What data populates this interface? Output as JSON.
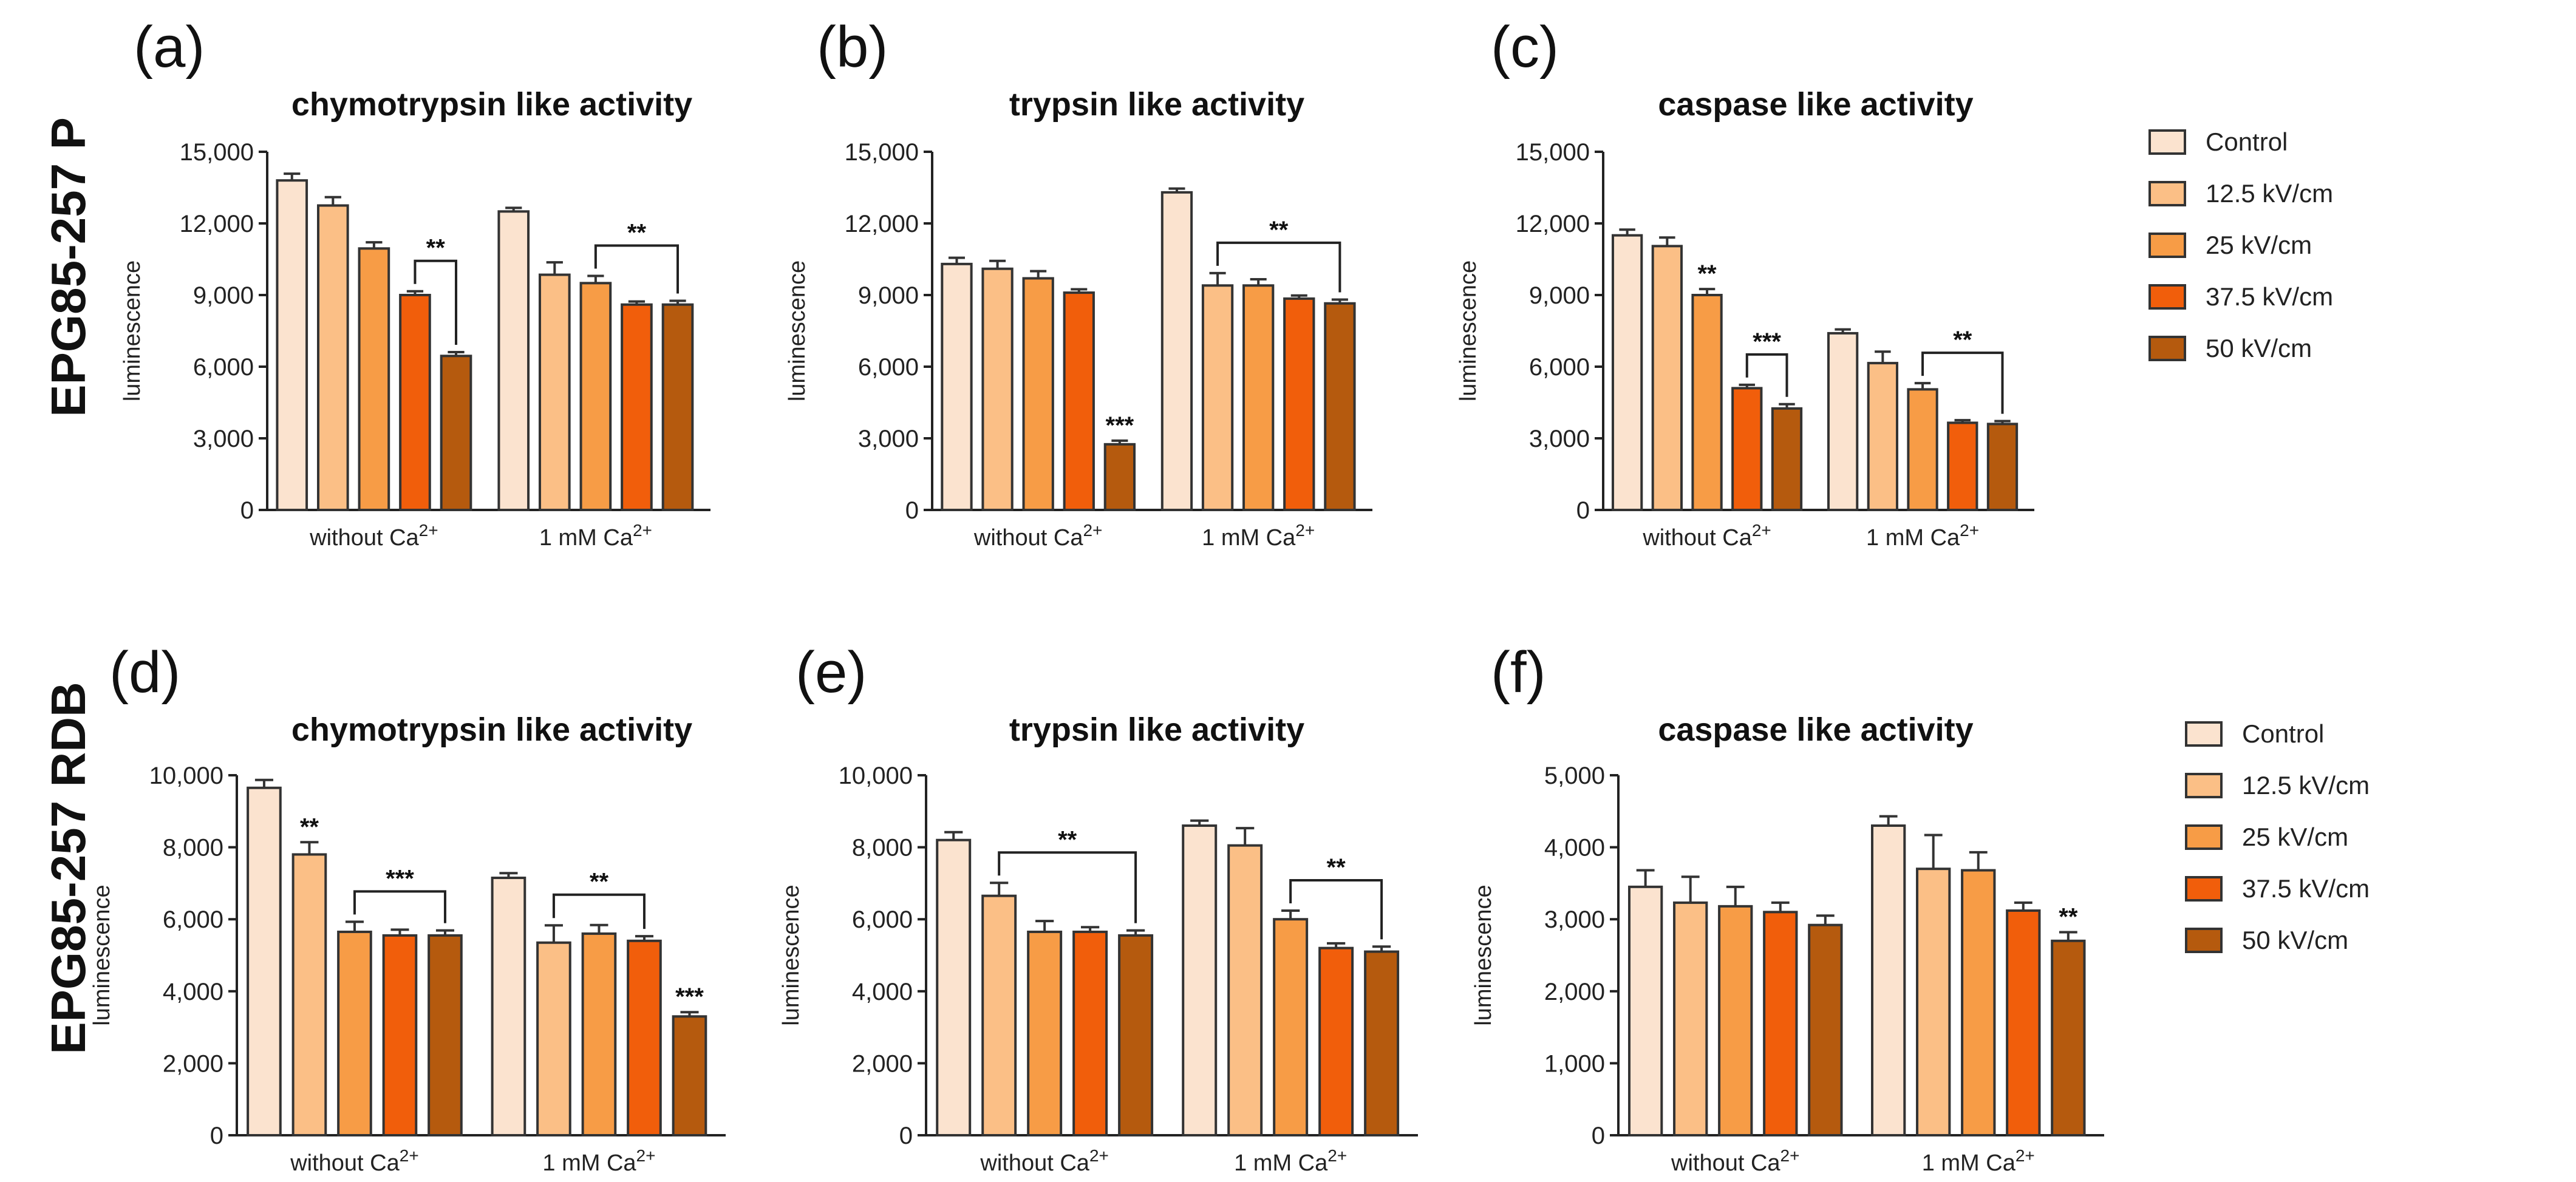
{
  "row_labels": [
    "EPG85-257 P",
    "EPG85-257 RDB"
  ],
  "colors": {
    "bar_colors": [
      "#fbe3cf",
      "#fbbf86",
      "#f79c46",
      "#f15e0b",
      "#b55a0e"
    ],
    "outline": "#333333"
  },
  "legends": [
    {
      "entries": [
        "Control",
        "12.5 kV/cm",
        "25  kV/cm",
        "37.5  kV/cm",
        "50  kV/cm"
      ]
    },
    {
      "entries": [
        "Control",
        "12.5 kV/cm",
        "25  kV/cm",
        "37.5  kV/cm",
        "50  kV/cm"
      ]
    }
  ],
  "chart_data": [
    {
      "type": "bar",
      "panel": "(a)",
      "title": "chymotrypsin like activity",
      "ylabel": "luminescence",
      "ylim": [
        0,
        15000
      ],
      "yticks": [
        "0",
        "3,000",
        "6,000",
        "9,000",
        "12,000",
        "15,000"
      ],
      "groups": [
        {
          "label": "without Ca",
          "sup": "2+",
          "values": [
            13800,
            12750,
            10950,
            9000,
            6450
          ],
          "errors": [
            280,
            350,
            260,
            160,
            160
          ]
        },
        {
          "label": "1 mM Ca",
          "sup": "2+",
          "values": [
            12500,
            9850,
            9500,
            8600,
            8600
          ],
          "errors": [
            150,
            520,
            300,
            130,
            160
          ]
        }
      ],
      "brackets": [
        {
          "from": [
            0,
            3
          ],
          "to": [
            0,
            4
          ],
          "text": "**"
        },
        {
          "from": [
            1,
            2
          ],
          "to": [
            1,
            4
          ],
          "text": "**"
        }
      ],
      "stars": []
    },
    {
      "type": "bar",
      "panel": "(b)",
      "title": "trypsin like activity",
      "ylabel": "luminescence",
      "ylim": [
        0,
        15000
      ],
      "yticks": [
        "0",
        "3,000",
        "6,000",
        "9,000",
        "12,000",
        "15,000"
      ],
      "groups": [
        {
          "label": "without Ca",
          "sup": "2+",
          "values": [
            10300,
            10100,
            9700,
            9100,
            2750
          ],
          "errors": [
            260,
            330,
            300,
            140,
            150
          ]
        },
        {
          "label": "1 mM Ca",
          "sup": "2+",
          "values": [
            13300,
            9400,
            9400,
            8850,
            8650
          ],
          "errors": [
            160,
            520,
            260,
            130,
            160
          ]
        }
      ],
      "brackets": [
        {
          "from": [
            1,
            1
          ],
          "to": [
            1,
            4
          ],
          "text": "**"
        }
      ],
      "stars": [
        {
          "group": 0,
          "bar": 4,
          "text": "***"
        }
      ]
    },
    {
      "type": "bar",
      "panel": "(c)",
      "title": "caspase like activity",
      "ylabel": "luminescence",
      "ylim": [
        0,
        15000
      ],
      "yticks": [
        "0",
        "3,000",
        "6,000",
        "9,000",
        "12,000",
        "15,000"
      ],
      "groups": [
        {
          "label": "without Ca",
          "sup": "2+",
          "values": [
            11500,
            11050,
            9000,
            5100,
            4250
          ],
          "errors": [
            240,
            360,
            250,
            140,
            180
          ]
        },
        {
          "label": "1 mM Ca",
          "sup": "2+",
          "values": [
            7400,
            6150,
            5050,
            3650,
            3600
          ],
          "errors": [
            160,
            480,
            260,
            110,
            120
          ]
        }
      ],
      "brackets": [
        {
          "from": [
            0,
            3
          ],
          "to": [
            0,
            4
          ],
          "text": "***"
        },
        {
          "from": [
            1,
            2
          ],
          "to": [
            1,
            4
          ],
          "text": "**"
        }
      ],
      "stars": [
        {
          "group": 0,
          "bar": 2,
          "text": "**"
        }
      ]
    },
    {
      "type": "bar",
      "panel": "(d)",
      "title": "chymotrypsin like activity",
      "ylabel": "luminescence",
      "ylim": [
        0,
        10000
      ],
      "yticks": [
        "0",
        "2,000",
        "4,000",
        "6,000",
        "8,000",
        "10,000"
      ],
      "groups": [
        {
          "label": "without Ca",
          "sup": "2+",
          "values": [
            9650,
            7800,
            5650,
            5550,
            5550
          ],
          "errors": [
            220,
            340,
            280,
            160,
            140
          ]
        },
        {
          "label": "1 mM Ca",
          "sup": "2+",
          "values": [
            7150,
            5350,
            5600,
            5400,
            3300
          ],
          "errors": [
            130,
            480,
            240,
            130,
            120
          ]
        }
      ],
      "brackets": [
        {
          "from": [
            0,
            2
          ],
          "to": [
            0,
            4
          ],
          "text": "***"
        },
        {
          "from": [
            1,
            1
          ],
          "to": [
            1,
            3
          ],
          "text": "**"
        }
      ],
      "stars": [
        {
          "group": 0,
          "bar": 1,
          "text": "**"
        },
        {
          "group": 1,
          "bar": 4,
          "text": "***"
        }
      ]
    },
    {
      "type": "bar",
      "panel": "(e)",
      "title": "trypsin like activity",
      "ylabel": "luminescence",
      "ylim": [
        0,
        10000
      ],
      "yticks": [
        "0",
        "2,000",
        "4,000",
        "6,000",
        "8,000",
        "10,000"
      ],
      "groups": [
        {
          "label": "without Ca",
          "sup": "2+",
          "values": [
            8200,
            6650,
            5650,
            5650,
            5550
          ],
          "errors": [
            220,
            360,
            300,
            130,
            140
          ]
        },
        {
          "label": "1 mM Ca",
          "sup": "2+",
          "values": [
            8600,
            8050,
            6000,
            5200,
            5100
          ],
          "errors": [
            140,
            480,
            240,
            130,
            140
          ]
        }
      ],
      "brackets": [
        {
          "from": [
            0,
            1
          ],
          "to": [
            0,
            4
          ],
          "text": "**"
        },
        {
          "from": [
            1,
            2
          ],
          "to": [
            1,
            4
          ],
          "text": "**"
        }
      ],
      "stars": []
    },
    {
      "type": "bar",
      "panel": "(f)",
      "title": "caspase like activity",
      "ylabel": "luminescence",
      "ylim": [
        0,
        5000
      ],
      "yticks": [
        "0",
        "1,000",
        "2,000",
        "3,000",
        "4,000",
        "5,000"
      ],
      "groups": [
        {
          "label": "without Ca",
          "sup": "2+",
          "values": [
            3450,
            3230,
            3180,
            3100,
            2920
          ],
          "errors": [
            230,
            360,
            270,
            130,
            130
          ]
        },
        {
          "label": "1 mM Ca",
          "sup": "2+",
          "values": [
            4300,
            3700,
            3680,
            3120,
            2700
          ],
          "errors": [
            130,
            470,
            250,
            110,
            120
          ]
        }
      ],
      "brackets": [],
      "stars": [
        {
          "group": 1,
          "bar": 4,
          "text": "**"
        }
      ]
    }
  ]
}
